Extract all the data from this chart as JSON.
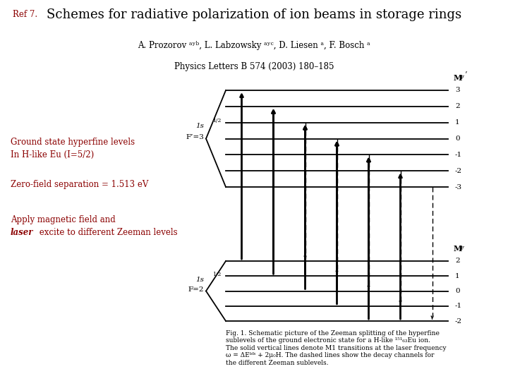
{
  "title_ref": "Ref 7.",
  "title_paper": "Schemes for radiative polarization of ion beams in storage rings",
  "authors": "A. Prozorov",
  "authors2": ", L. Labzowsky",
  "authors3": ", D. Liesen",
  "authors4": ", F. Bosch",
  "journal": "Physics Letters B 574 (2003) 180–185",
  "text_left_1": "Ground state hyperfine levels",
  "text_left_2": "In H-like Eu (I=5/2)",
  "text_left_3": "Zero-field separation = 1.513 eV",
  "text_left_4": "Apply magnetic field and",
  "text_left_5": "laser",
  "text_left_6": " excite to different Zeeman levels",
  "upper_levels": [
    3,
    2,
    1,
    0,
    -1,
    -2,
    -3
  ],
  "lower_levels": [
    2,
    1,
    0,
    -1,
    -2
  ],
  "bg_color": "#ffffff",
  "text_color": "#000000",
  "dark_red": "#8b0000",
  "fig_cap1": "Fig. 1. Schematic picture of the Zeeman splitting of the hyperfine",
  "fig_cap2": "sublevels of the ground electronic state for a H-like ",
  "fig_cap3": "Eu ion.",
  "fig_cap4": "The solid vertical lines denote M1 transitions at the laser frequency",
  "fig_cap5": "ω = ΔE",
  "fig_cap6": " + 2μ₀H. The dashed lines show the decay channels for",
  "fig_cap7": "the different Zeeman sublevels."
}
